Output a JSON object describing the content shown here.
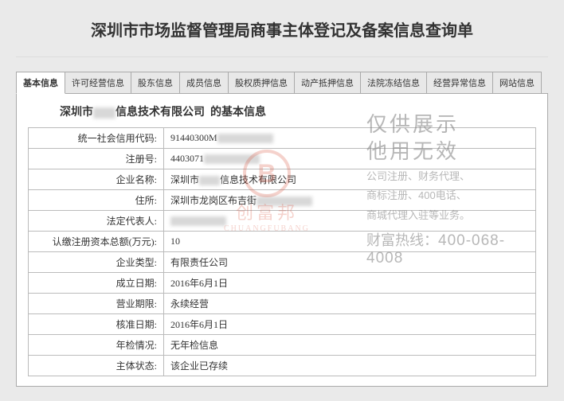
{
  "page_title": "深圳市市场监督管理局商事主体登记及备案信息查询单",
  "tabs": [
    {
      "label": "基本信息",
      "active": true
    },
    {
      "label": "许可经营信息",
      "active": false
    },
    {
      "label": "股东信息",
      "active": false
    },
    {
      "label": "成员信息",
      "active": false
    },
    {
      "label": "股权质押信息",
      "active": false
    },
    {
      "label": "动产抵押信息",
      "active": false
    },
    {
      "label": "法院冻结信息",
      "active": false
    },
    {
      "label": "经营异常信息",
      "active": false
    },
    {
      "label": "网站信息",
      "active": false
    }
  ],
  "section_title_prefix": "深圳市",
  "section_title_mid": "信息技术有限公司",
  "section_title_suffix": "的基本信息",
  "rows": [
    {
      "label": "统一社会信用代码:",
      "value_prefix": "91440300M",
      "blurred": true
    },
    {
      "label": "注册号:",
      "value_prefix": "4403071",
      "blurred": true
    },
    {
      "label": "企业名称:",
      "value_prefix": "深圳市",
      "value_mid_blur": true,
      "value_suffix": "信息技术有限公司"
    },
    {
      "label": "住所:",
      "value_prefix": "深圳市龙岗区布吉街",
      "blurred": true
    },
    {
      "label": "法定代表人:",
      "value_prefix": "",
      "blurred": true
    },
    {
      "label": "认缴注册资本总额(万元):",
      "value": "10"
    },
    {
      "label": "企业类型:",
      "value": "有限责任公司"
    },
    {
      "label": "成立日期:",
      "value": "2016年6月1日"
    },
    {
      "label": "营业期限:",
      "value": "永续经营"
    },
    {
      "label": "核准日期:",
      "value": "2016年6月1日"
    },
    {
      "label": "年检情况:",
      "value": "无年检信息"
    },
    {
      "label": "主体状态:",
      "value": "该企业已存续"
    }
  ],
  "watermark_cfb": {
    "circle_text": "B",
    "main": "创富邦",
    "sub": "CHUANGFUBANG"
  },
  "watermark_right": {
    "line1": "仅供展示",
    "line2": "他用无效",
    "small1": "公司注册、财务代理、",
    "small2": "商标注册、400电话、",
    "small3": "商城代理入驻等业务。",
    "hotline_label": "财富热线：",
    "hotline": "400-068-4008"
  },
  "colors": {
    "bg": "#eaeaea",
    "border": "#aaa",
    "watermark_red": "#d94f3a",
    "watermark_gray": "#888"
  }
}
